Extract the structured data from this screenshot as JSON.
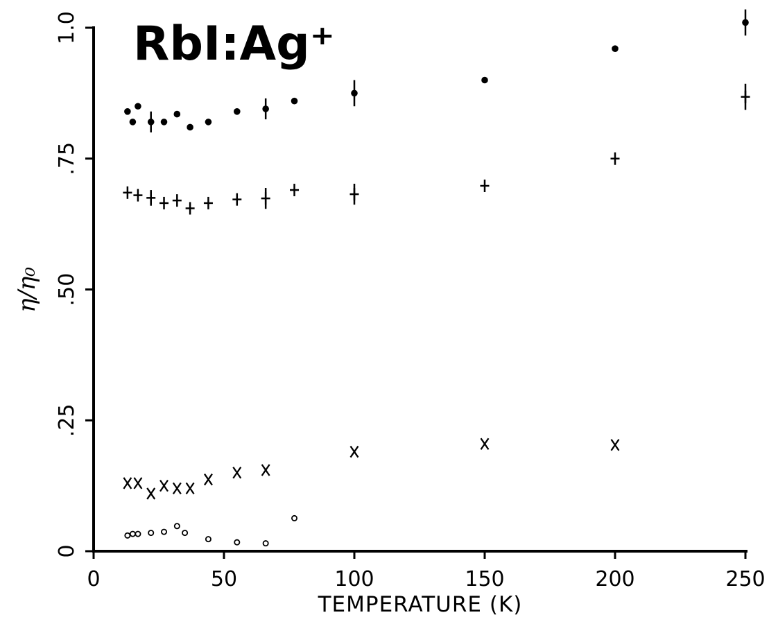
{
  "chart_data": {
    "type": "scatter",
    "title": "RbI:Ag⁺",
    "xlabel": "TEMPERATURE  (K)",
    "ylabel": "η/η₀",
    "xlim": [
      0,
      250
    ],
    "ylim": [
      0,
      1.0
    ],
    "xticks": [
      0,
      50,
      100,
      150,
      200,
      250
    ],
    "xtick_labels": [
      "0",
      "50",
      "100",
      "150",
      "200",
      "250"
    ],
    "yticks": [
      0,
      0.25,
      0.5,
      0.75,
      1.0
    ],
    "ytick_labels": [
      "0",
      ".25",
      ".50",
      ".75",
      "1.0"
    ],
    "grid": false,
    "legend": "none",
    "series": [
      {
        "marker": "filled-circle",
        "x": [
          13,
          15,
          17,
          22,
          27,
          32,
          37,
          44,
          55,
          66,
          77,
          100,
          150,
          200,
          250
        ],
        "y": [
          0.84,
          0.82,
          0.85,
          0.82,
          0.82,
          0.835,
          0.81,
          0.82,
          0.84,
          0.845,
          0.86,
          0.875,
          0.9,
          0.96,
          1.01
        ],
        "err": [
          0,
          0,
          0,
          0.02,
          0,
          0,
          0,
          0,
          0,
          0.02,
          0,
          0.025,
          0,
          0,
          0.025
        ]
      },
      {
        "marker": "plus",
        "x": [
          13,
          17,
          22,
          27,
          32,
          37,
          44,
          55,
          66,
          77,
          100,
          150,
          200,
          250
        ],
        "y": [
          0.685,
          0.68,
          0.675,
          0.665,
          0.67,
          0.655,
          0.665,
          0.672,
          0.674,
          0.69,
          0.682,
          0.698,
          0.75,
          0.868
        ],
        "err": [
          0,
          0,
          0.015,
          0,
          0,
          0,
          0,
          0,
          0.02,
          0,
          0.02,
          0,
          0,
          0.025
        ]
      },
      {
        "marker": "x",
        "x": [
          13,
          17,
          22,
          27,
          32,
          37,
          44,
          55,
          66,
          100,
          150,
          200
        ],
        "y": [
          0.13,
          0.13,
          0.11,
          0.125,
          0.12,
          0.12,
          0.137,
          0.15,
          0.155,
          0.19,
          0.205,
          0.203
        ],
        "err": []
      },
      {
        "marker": "open-circle",
        "x": [
          13,
          15,
          17,
          22,
          27,
          32,
          35,
          44,
          55,
          66,
          77
        ],
        "y": [
          0.03,
          0.033,
          0.033,
          0.035,
          0.037,
          0.048,
          0.035,
          0.023,
          0.017,
          0.015,
          0.063
        ],
        "err": []
      }
    ]
  }
}
